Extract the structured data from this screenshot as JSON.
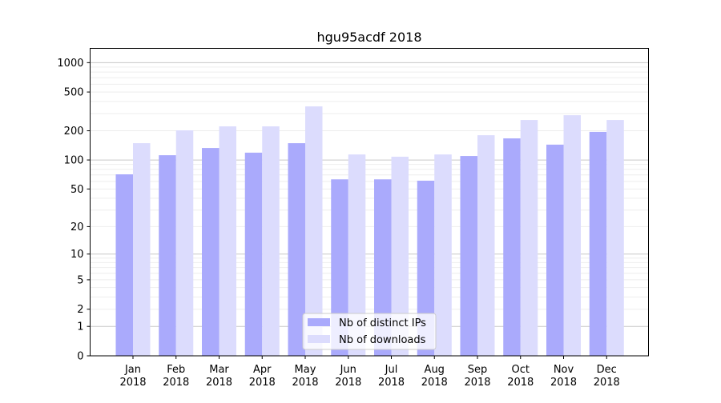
{
  "chart_data": {
    "type": "bar",
    "title": "hgu95acdf 2018",
    "xlabel": "",
    "ylabel": "",
    "yscale": "log(1+y)",
    "ylim": [
      0,
      1400
    ],
    "yticks": [
      0,
      1,
      2,
      5,
      10,
      20,
      50,
      100,
      200,
      500,
      1000
    ],
    "ytick_labels": [
      "0",
      "1",
      "2",
      "5",
      "10",
      "20",
      "50",
      "100",
      "200",
      "500",
      "1000"
    ],
    "grid": true,
    "legend_position": "bottom-center",
    "categories": [
      [
        "Jan",
        "2018"
      ],
      [
        "Feb",
        "2018"
      ],
      [
        "Mar",
        "2018"
      ],
      [
        "Apr",
        "2018"
      ],
      [
        "May",
        "2018"
      ],
      [
        "Jun",
        "2018"
      ],
      [
        "Jul",
        "2018"
      ],
      [
        "Aug",
        "2018"
      ],
      [
        "Sep",
        "2018"
      ],
      [
        "Oct",
        "2018"
      ],
      [
        "Nov",
        "2018"
      ],
      [
        "Dec",
        "2018"
      ]
    ],
    "series": [
      {
        "name": "Nb of distinct IPs",
        "color": "#aaaafc",
        "values": [
          71,
          112,
          133,
          119,
          149,
          63,
          63,
          61,
          110,
          167,
          144,
          195
        ]
      },
      {
        "name": "Nb of downloads",
        "color": "#dcdcfd",
        "values": [
          149,
          202,
          222,
          222,
          356,
          114,
          108,
          114,
          180,
          258,
          289,
          258
        ]
      }
    ]
  }
}
